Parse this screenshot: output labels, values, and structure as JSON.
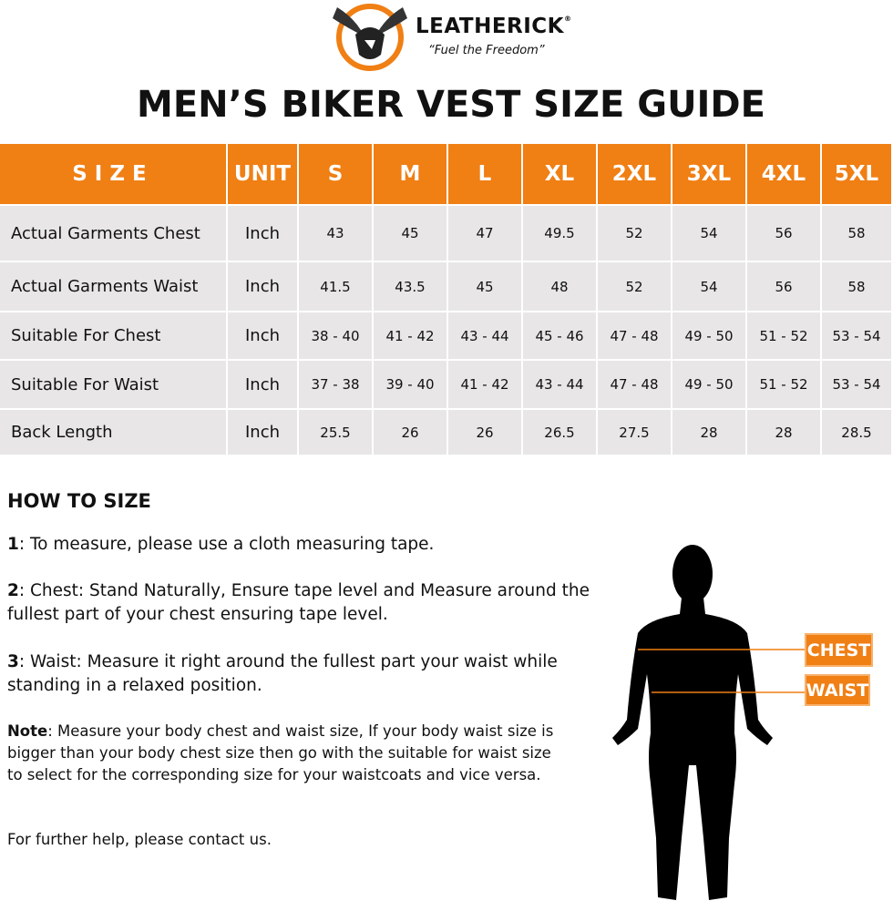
{
  "header": {
    "brand": "LEATHERICK",
    "registered": "®",
    "tagline": "“Fuel the Freedom”"
  },
  "title": "MEN’S BIKER VEST SIZE GUIDE",
  "table": {
    "columns": [
      "SIZE",
      "UNIT",
      "S",
      "M",
      "L",
      "XL",
      "2XL",
      "3XL",
      "4XL",
      "5XL"
    ],
    "rows": [
      [
        "Actual Garments Chest",
        "Inch",
        "43",
        "45",
        "47",
        "49.5",
        "52",
        "54",
        "56",
        "58"
      ],
      [
        "Actual Garments Waist",
        "Inch",
        "41.5",
        "43.5",
        "45",
        "48",
        "52",
        "54",
        "56",
        "58"
      ],
      [
        "Suitable For Chest",
        "Inch",
        "38 - 40",
        "41 - 42",
        "43 - 44",
        "45 - 46",
        "47 - 48",
        "49 - 50",
        "51 - 52",
        "53 - 54"
      ],
      [
        "Suitable For Waist",
        "Inch",
        "37 - 38",
        "39 - 40",
        "41 - 42",
        "43 - 44",
        "47 - 48",
        "49 - 50",
        "51 - 52",
        "53 - 54"
      ],
      [
        "Back Length",
        "Inch",
        "25.5",
        "26",
        "26",
        "26.5",
        "27.5",
        "28",
        "28",
        "28.5"
      ]
    ]
  },
  "how_to_size": {
    "heading": "HOW TO SIZE",
    "steps": [
      {
        "number": "1",
        "text": ": To measure, please use a cloth measuring tape."
      },
      {
        "number": "2",
        "text": ": Chest: Stand Naturally, Ensure tape level and Measure around the fullest part of your chest ensuring tape level."
      },
      {
        "number": "3",
        "text": ": Waist: Measure it right around the fullest part your waist while standing in a relaxed position."
      }
    ],
    "note_label": "Note",
    "note_text": ": Measure your body chest and waist size, If your body waist size is bigger than your body chest size then go with the suitable for waist size to select for the corresponding size for your waistcoats and vice versa.",
    "contact": "For further help, please contact us."
  },
  "figure": {
    "chest_label": "CHEST",
    "waist_label": "WAIST"
  }
}
